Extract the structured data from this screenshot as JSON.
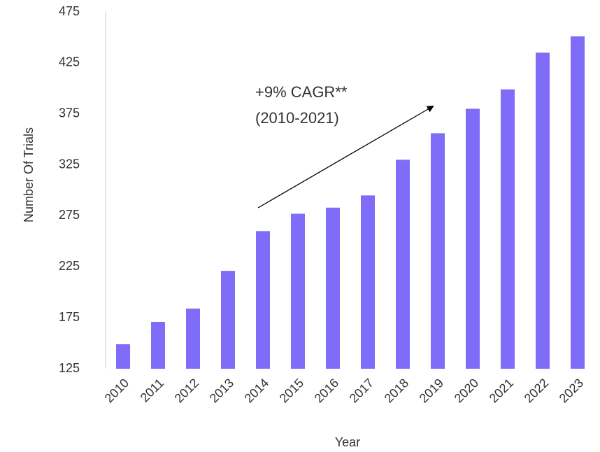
{
  "chart_data": {
    "type": "bar",
    "categories": [
      "2010",
      "2011",
      "2012",
      "2013",
      "2014",
      "2015",
      "2016",
      "2017",
      "2018",
      "2019",
      "2020",
      "2021",
      "2022",
      "2023"
    ],
    "values": [
      149,
      171,
      184,
      221,
      260,
      277,
      283,
      295,
      330,
      356,
      380,
      399,
      435,
      451
    ],
    "color": "#7f6cf8",
    "ylim": [
      125,
      475
    ],
    "yticks": [
      125,
      175,
      225,
      275,
      325,
      375,
      425,
      475
    ],
    "y_label": "Number Of Trials",
    "x_label": "Year",
    "grid": false,
    "annotation": [
      "+9% CAGR**",
      "(2010-2021)"
    ]
  }
}
